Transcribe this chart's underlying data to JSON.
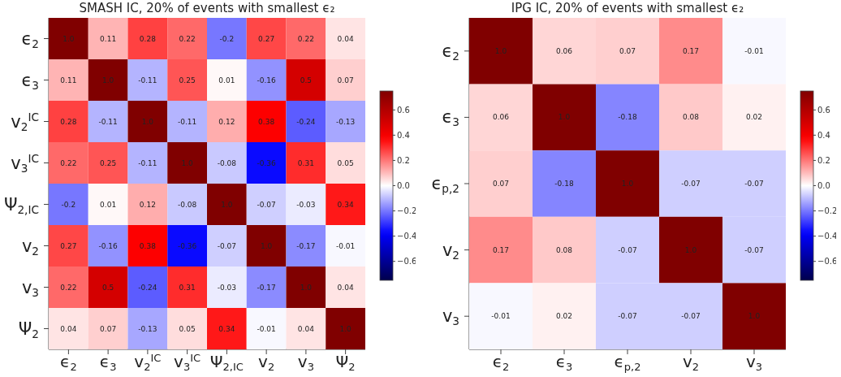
{
  "chart_data": [
    {
      "type": "heatmap",
      "title": "SMASH IC, 20% of events with smallest ϵ₂",
      "categories": [
        "ϵ$_{2}$",
        "ϵ$_{3}$",
        "v$_{2}$$^{IC}$",
        "v$_{3}$$^{IC}$",
        "Ψ$_{2,IC}$",
        "v$_{2}$",
        "v$_{3}$",
        "Ψ$_{2}$"
      ],
      "y_categories": [
        "ϵ$_{2}$",
        "ϵ$_{3}$",
        "v$_{2}$$^{IC}$",
        "v$_{3}$$^{IC}$",
        "Ψ$_{2,IC}$",
        "v$_{2}$",
        "v$_{3}$",
        "Ψ$_{2}$"
      ],
      "cells": [
        [
          1.0,
          0.11,
          0.28,
          0.22,
          -0.2,
          0.27,
          0.22,
          0.04
        ],
        [
          0.11,
          1.0,
          -0.11,
          0.25,
          0.01,
          -0.16,
          0.5,
          0.07
        ],
        [
          0.28,
          -0.11,
          1.0,
          -0.11,
          0.12,
          0.38,
          -0.24,
          -0.13
        ],
        [
          0.22,
          0.25,
          -0.11,
          1.0,
          -0.08,
          -0.36,
          0.31,
          0.05
        ],
        [
          -0.2,
          0.01,
          0.12,
          -0.08,
          1.0,
          -0.07,
          -0.03,
          0.34
        ],
        [
          0.27,
          -0.16,
          0.38,
          -0.36,
          -0.07,
          1.0,
          -0.17,
          -0.01
        ],
        [
          0.22,
          0.5,
          -0.24,
          0.31,
          -0.03,
          -0.17,
          1.0,
          0.04
        ],
        [
          0.04,
          0.07,
          -0.13,
          0.05,
          0.34,
          -0.01,
          0.04,
          1.0
        ]
      ],
      "cell_labels": [
        [
          "1.0",
          "0.11",
          "0.28",
          "0.22",
          "-0.2",
          "0.27",
          "0.22",
          "0.04"
        ],
        [
          "0.11",
          "1.0",
          "-0.11",
          "0.25",
          "0.01",
          "-0.16",
          "0.5",
          "0.07"
        ],
        [
          "0.28",
          "-0.11",
          "1.0",
          "-0.11",
          "0.12",
          "0.38",
          "-0.24",
          "-0.13"
        ],
        [
          "0.22",
          "0.25",
          "-0.11",
          "1.0",
          "-0.08",
          "-0.36",
          "0.31",
          "0.05"
        ],
        [
          "-0.2",
          "0.01",
          "0.12",
          "-0.08",
          "1.0",
          "-0.07",
          "-0.03",
          "0.34"
        ],
        [
          "0.27",
          "-0.16",
          "0.38",
          "-0.36",
          "-0.07",
          "1.0",
          "-0.17",
          "-0.01"
        ],
        [
          "0.22",
          "0.5",
          "-0.24",
          "0.31",
          "-0.03",
          "-0.17",
          "1.0",
          "0.04"
        ],
        [
          "0.04",
          "0.07",
          "-0.13",
          "0.05",
          "0.34",
          "-0.01",
          "0.04",
          "1.0"
        ]
      ],
      "clim": [
        -0.75,
        0.75
      ],
      "cticks": [
        {
          "value": -0.6,
          "label": "−0.6"
        },
        {
          "value": -0.4,
          "label": "−0.4"
        },
        {
          "value": -0.2,
          "label": "−0.2"
        },
        {
          "value": 0,
          "label": "0.0"
        },
        {
          "value": 0.2,
          "label": "0.2"
        },
        {
          "value": 0.4,
          "label": "0.4"
        },
        {
          "value": 0.6,
          "label": "0.6"
        }
      ]
    },
    {
      "type": "heatmap",
      "title": "IPG IC, 20% of events with smallest ϵ₂",
      "categories": [
        "ϵ$_{2}$",
        "ϵ$_{3}$",
        "ϵ$_{p,2}$",
        "v$_{2}$",
        "v$_{3}$"
      ],
      "y_categories": [
        "ϵ$_{2}$",
        "ϵ$_{3}$",
        "ϵ$_{p,2}$",
        "v$_{2}$",
        "v$_{3}$"
      ],
      "cells": [
        [
          1.0,
          0.06,
          0.07,
          0.17,
          -0.01
        ],
        [
          0.06,
          1.0,
          -0.18,
          0.08,
          0.02
        ],
        [
          0.07,
          -0.18,
          1.0,
          -0.07,
          -0.07
        ],
        [
          0.17,
          0.08,
          -0.07,
          1.0,
          -0.07
        ],
        [
          -0.01,
          0.02,
          -0.07,
          -0.07,
          1.0
        ]
      ],
      "cell_labels": [
        [
          "1.0",
          "0.06",
          "0.07",
          "0.17",
          "-0.01"
        ],
        [
          "0.06",
          "1.0",
          "-0.18",
          "0.08",
          "0.02"
        ],
        [
          "0.07",
          "-0.18",
          "1.0",
          "-0.07",
          "-0.07"
        ],
        [
          "0.17",
          "0.08",
          "-0.07",
          "1.0",
          "-0.07"
        ],
        [
          "-0.01",
          "0.02",
          "-0.07",
          "-0.07",
          "1.0"
        ]
      ],
      "clim": [
        -0.75,
        0.75
      ],
      "cticks": [
        {
          "value": -0.6,
          "label": "−0.6"
        },
        {
          "value": -0.4,
          "label": "−0.4"
        },
        {
          "value": -0.2,
          "label": "−0.2"
        },
        {
          "value": 0,
          "label": "0.0"
        },
        {
          "value": 0.2,
          "label": "0.2"
        },
        {
          "value": 0.4,
          "label": "0.4"
        },
        {
          "value": 0.6,
          "label": "0.6"
        }
      ]
    }
  ]
}
